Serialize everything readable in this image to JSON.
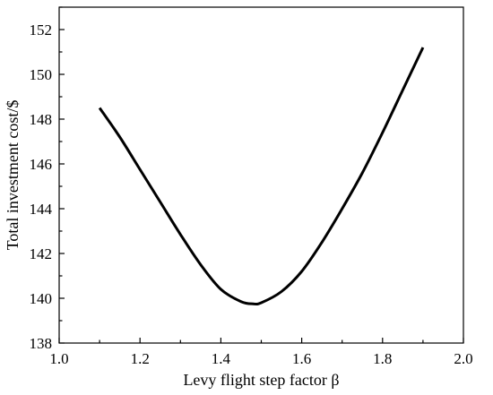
{
  "chart_data": {
    "type": "line",
    "xlabel": "Levy flight step factor β",
    "ylabel": "Total investment cost/$",
    "xlim": [
      1.0,
      2.0
    ],
    "ylim": [
      138,
      153
    ],
    "x_ticks": [
      "1.0",
      "1.2",
      "1.4",
      "1.6",
      "1.8",
      "2.0"
    ],
    "y_ticks": [
      "138",
      "140",
      "142",
      "144",
      "146",
      "148",
      "150",
      "152"
    ],
    "grid": false,
    "legend": "none",
    "line_color": "#000000",
    "series": [
      {
        "x": [
          1.1,
          1.15,
          1.2,
          1.25,
          1.3,
          1.35,
          1.4,
          1.45,
          1.48,
          1.5,
          1.55,
          1.6,
          1.65,
          1.7,
          1.75,
          1.8,
          1.85,
          1.9
        ],
        "y": [
          148.5,
          147.2,
          145.75,
          144.3,
          142.85,
          141.5,
          140.4,
          139.85,
          139.75,
          139.8,
          140.3,
          141.2,
          142.5,
          144.0,
          145.6,
          147.4,
          149.3,
          151.2
        ]
      }
    ]
  }
}
